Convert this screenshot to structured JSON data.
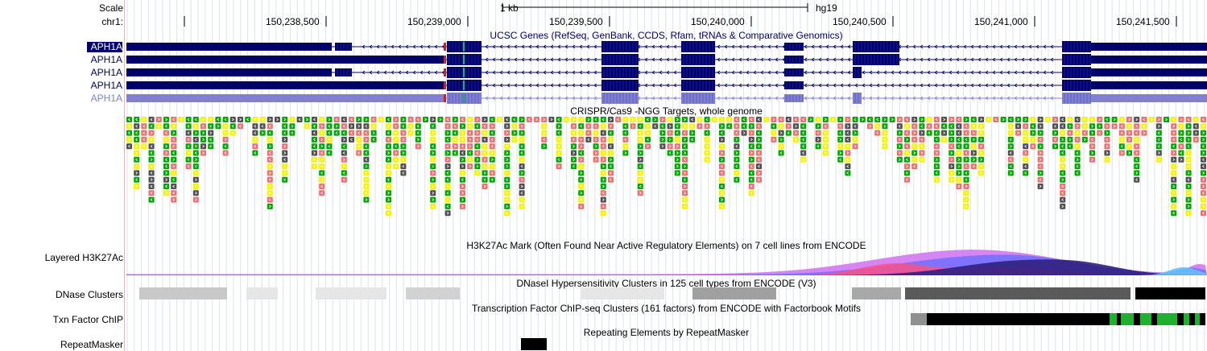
{
  "ruler": {
    "scale_label": "Scale",
    "chrom_label": "chr1:",
    "scale_bar_text": "1 kb",
    "assembly": "hg19",
    "tick_labels": [
      "150,238,500",
      "150,239,000",
      "150,239,500",
      "150,240,000",
      "150,240,500",
      "150,241,000",
      "150,241,500"
    ]
  },
  "genes_track": {
    "title": "UCSC Genes (RefSeq, GenBank, CCDS, Rfam, tRNAs & Comparative Genomics)",
    "gene_labels": [
      "APH1A",
      "APH1A",
      "APH1A",
      "APH1A",
      "APH1A"
    ],
    "colors": {
      "dark": "#00006e",
      "light": "#8080d0"
    }
  },
  "crispr_track": {
    "title": "CRISPR/Cas9 -NGG Targets, whole genome",
    "colors": {
      "green": "#00a800",
      "yellow": "#f5f500",
      "red": "#f07070",
      "gray": "#505050"
    }
  },
  "h3k27ac_track": {
    "label": "Layered H3K27Ac",
    "title": "H3K27Ac Mark (Often Found Near Active Regulatory Elements) on 7 cell lines from ENCODE"
  },
  "dnase_track": {
    "label": "DNase Clusters",
    "title": "DNaseI Hypersensitivity Clusters in 125 cell types from ENCODE (V3)"
  },
  "txn_track": {
    "label": "Txn Factor ChIP",
    "title": "Transcription Factor ChIP-seq Clusters (161 factors) from ENCODE with Factorbook Motifs"
  },
  "repeat_track": {
    "label": "RepeatMasker",
    "title": "Repeating Elements by RepeatMasker"
  }
}
